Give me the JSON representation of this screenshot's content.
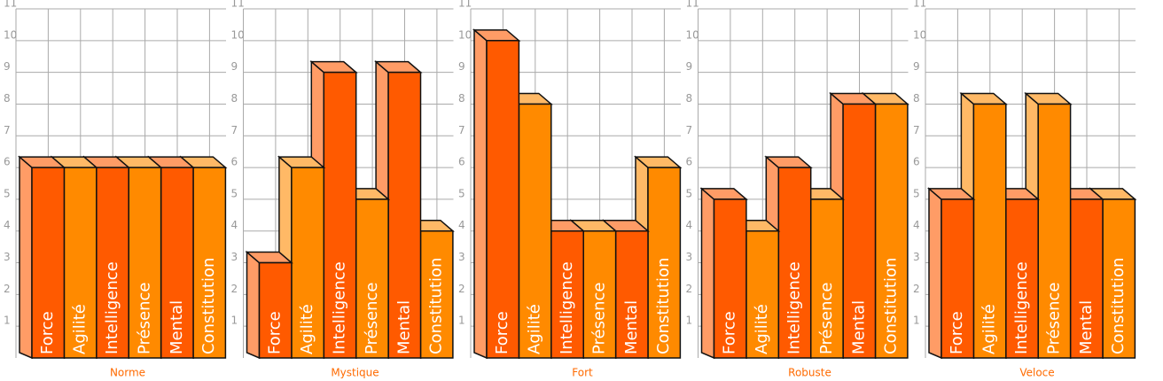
{
  "chart_data": [
    {
      "type": "bar3d",
      "title": "Norme",
      "categories": [
        "Force",
        "Agilité",
        "Intelligence",
        "Présence",
        "Mental",
        "Constitution"
      ],
      "values": [
        6,
        6,
        6,
        6,
        6,
        6
      ],
      "colors": [
        "#ff5a00",
        "#ff8a00",
        "#ff5a00",
        "#ff8a00",
        "#ff5a00",
        "#ff8a00"
      ],
      "ylim": [
        0,
        11
      ],
      "yticks": [
        1,
        2,
        3,
        4,
        5,
        6,
        7,
        8,
        9,
        10,
        11
      ],
      "grid": true
    },
    {
      "type": "bar3d",
      "title": "Mystique",
      "categories": [
        "Force",
        "Agilité",
        "Intelligence",
        "Présence",
        "Mental",
        "Constitution"
      ],
      "values": [
        3,
        6,
        9,
        5,
        9,
        4
      ],
      "colors": [
        "#ff5a00",
        "#ff8a00",
        "#ff5a00",
        "#ff8a00",
        "#ff5a00",
        "#ff8a00"
      ],
      "ylim": [
        0,
        11
      ],
      "yticks": [
        1,
        2,
        3,
        4,
        5,
        6,
        7,
        8,
        9,
        10,
        11
      ],
      "grid": true
    },
    {
      "type": "bar3d",
      "title": "Fort",
      "categories": [
        "Force",
        "Agilité",
        "Intelligence",
        "Présence",
        "Mental",
        "Constitution"
      ],
      "values": [
        10,
        8,
        4,
        4,
        4,
        6
      ],
      "colors": [
        "#ff5a00",
        "#ff8a00",
        "#ff5a00",
        "#ff8a00",
        "#ff5a00",
        "#ff8a00"
      ],
      "ylim": [
        0,
        11
      ],
      "yticks": [
        1,
        2,
        3,
        4,
        5,
        6,
        7,
        8,
        9,
        10,
        11
      ],
      "grid": true
    },
    {
      "type": "bar3d",
      "title": "Robuste",
      "categories": [
        "Force",
        "Agilité",
        "Intelligence",
        "Présence",
        "Mental",
        "Constitution"
      ],
      "values": [
        5,
        4,
        6,
        5,
        8,
        8
      ],
      "colors": [
        "#ff5a00",
        "#ff8a00",
        "#ff5a00",
        "#ff8a00",
        "#ff5a00",
        "#ff8a00"
      ],
      "ylim": [
        0,
        11
      ],
      "yticks": [
        1,
        2,
        3,
        4,
        5,
        6,
        7,
        8,
        9,
        10,
        11
      ],
      "grid": true
    },
    {
      "type": "bar3d",
      "title": "Veloce",
      "categories": [
        "Force",
        "Agilité",
        "Intelligence",
        "Présence",
        "Mental",
        "Constitution"
      ],
      "values": [
        5,
        8,
        5,
        8,
        5,
        5
      ],
      "colors": [
        "#ff5a00",
        "#ff8a00",
        "#ff5a00",
        "#ff8a00",
        "#ff5a00",
        "#ff8a00"
      ],
      "ylim": [
        0,
        11
      ],
      "yticks": [
        1,
        2,
        3,
        4,
        5,
        6,
        7,
        8,
        9,
        10,
        11
      ],
      "grid": true
    }
  ]
}
